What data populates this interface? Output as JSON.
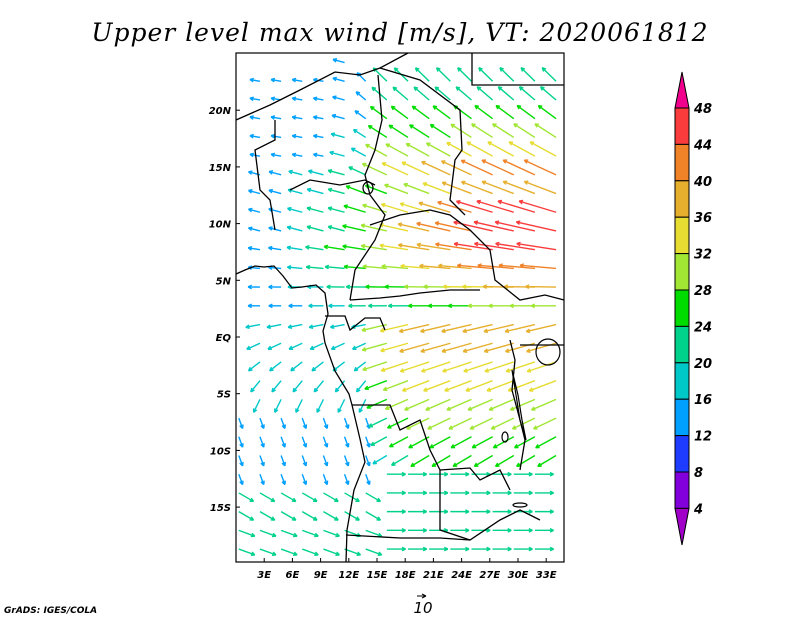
{
  "title": "Upper level max wind [m/s], VT: 2020061812",
  "credit": "GrADS: IGES/COLA",
  "reference_vector": {
    "label": "10",
    "speed_ms": 10
  },
  "map": {
    "lon_range": [
      0,
      35
    ],
    "lat_range": [
      -20,
      25
    ],
    "lat_labels": [
      {
        "lat": 20,
        "text": "20N"
      },
      {
        "lat": 15,
        "text": "15N"
      },
      {
        "lat": 10,
        "text": "10N"
      },
      {
        "lat": 5,
        "text": "5N"
      },
      {
        "lat": 0,
        "text": "EQ"
      },
      {
        "lat": -5,
        "text": "5S"
      },
      {
        "lat": -10,
        "text": "10S"
      },
      {
        "lat": -15,
        "text": "15S"
      }
    ],
    "lon_labels": [
      {
        "lon": 3,
        "text": "3E"
      },
      {
        "lon": 6,
        "text": "6E"
      },
      {
        "lon": 9,
        "text": "9E"
      },
      {
        "lon": 12,
        "text": "12E"
      },
      {
        "lon": 15,
        "text": "15E"
      },
      {
        "lon": 18,
        "text": "18E"
      },
      {
        "lon": 21,
        "text": "21E"
      },
      {
        "lon": 24,
        "text": "24E"
      },
      {
        "lon": 27,
        "text": "27E"
      },
      {
        "lon": 30,
        "text": "30E"
      },
      {
        "lon": 33,
        "text": "33E"
      }
    ]
  },
  "colorbar": {
    "labels": [
      "48",
      "44",
      "40",
      "36",
      "32",
      "28",
      "24",
      "20",
      "16",
      "12",
      "8",
      "4"
    ],
    "levels": [
      4,
      8,
      12,
      16,
      20,
      24,
      28,
      32,
      36,
      40,
      44,
      48
    ],
    "colors": [
      "#a000c8",
      "#8200dc",
      "#1e3cff",
      "#00a0ff",
      "#00c8c8",
      "#00d28c",
      "#00dc00",
      "#a0e632",
      "#e6dc32",
      "#e6af2d",
      "#f08228",
      "#fa3c3c",
      "#f0008c"
    ]
  }
}
